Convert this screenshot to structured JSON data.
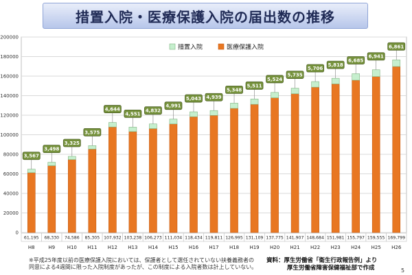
{
  "header": {
    "title": "措置入院・医療保護入院の届出数の推移"
  },
  "chart_data": {
    "type": "bar",
    "stacked": true,
    "categories": [
      "H8",
      "H9",
      "H10",
      "H11",
      "H12",
      "H13",
      "H14",
      "H15",
      "H16",
      "H17",
      "H18",
      "H19",
      "H20",
      "H21",
      "H22",
      "H23",
      "H24",
      "H25",
      "H26"
    ],
    "series": [
      {
        "name": "医療保護入院",
        "color": "#e87722",
        "values": [
          61195,
          68330,
          74586,
          85305,
          107932,
          103238,
          106273,
          111034,
          118434,
          119811,
          126995,
          131109,
          137775,
          141907,
          148684,
          151981,
          155797,
          159555,
          169799
        ],
        "labels": [
          "61,195",
          "68,330",
          "74,586",
          "85,305",
          "107,932",
          "103,238",
          "106,273",
          "111,034",
          "118,434",
          "119,811",
          "126,995",
          "131,109",
          "137,775",
          "141,907",
          "148,684",
          "151,981",
          "155,797",
          "159,555",
          "169,799"
        ]
      },
      {
        "name": "措置入院",
        "color": "#c6efce",
        "values": [
          3567,
          3498,
          3325,
          3575,
          4644,
          4551,
          4832,
          4991,
          5043,
          4939,
          5348,
          5511,
          5524,
          5735,
          5706,
          5818,
          6685,
          6941,
          6861
        ],
        "labels": [
          "3,567",
          "3,498",
          "3,325",
          "3,575",
          "4,644",
          "4,551",
          "4,832",
          "4,991",
          "5,043",
          "4,939",
          "5,348",
          "5,511",
          "5,524",
          "5,735",
          "5,706",
          "5,818",
          "6,685",
          "6,941",
          "6,861"
        ]
      }
    ],
    "yaxis": {
      "min": 0,
      "max": 200000,
      "step": 20000,
      "tick_labels": [
        "0",
        "20000",
        "40000",
        "60000",
        "80000",
        "100000",
        "120000",
        "140000",
        "160000",
        "180000",
        "200000"
      ]
    },
    "legend": {
      "position": "top-center",
      "items": [
        "措置入院",
        "医療保護入院"
      ]
    },
    "grid": true
  },
  "footnote": {
    "line1": "※平成25年度以前の医療保護入院においては、保護者として選任されていない扶養義務者の",
    "line2": "同意による4週間に限った入院制度があったが、この制度による入院者数は計上していない。"
  },
  "source": {
    "line1": "資料：厚生労働省「衛生行政報告例」より",
    "line2": "厚生労働省障害保健福祉部で作成"
  },
  "page_number": "5"
}
